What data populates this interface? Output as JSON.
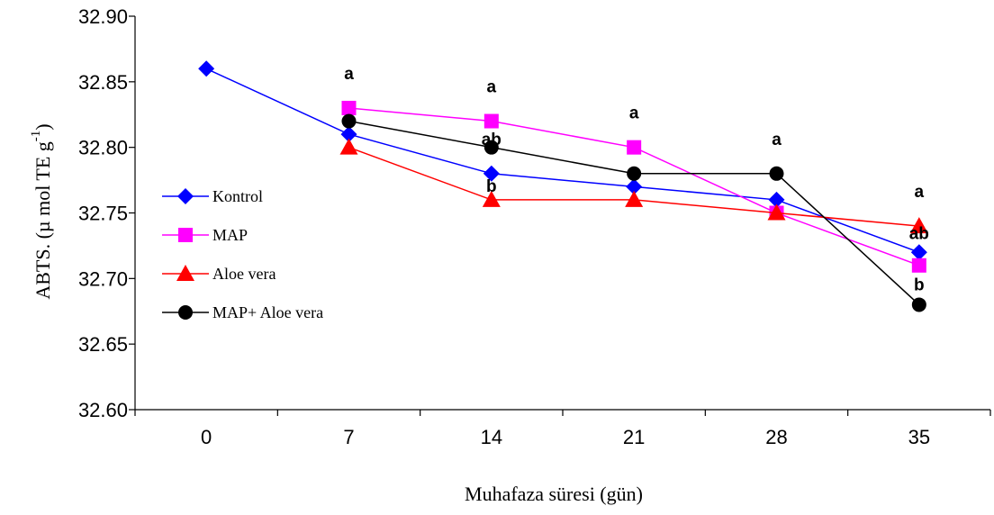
{
  "chart_data": {
    "type": "line",
    "x": [
      0,
      7,
      14,
      21,
      28,
      35
    ],
    "xlabel": "Muhafaza süresi (gün)",
    "ylabel_prefix": "ABTS. (µ mol  TE  g",
    "ylabel_sup": "-1",
    "ylabel_suffix": ")",
    "ylim": [
      32.6,
      32.9
    ],
    "yticks": [
      "32.60",
      "32.65",
      "32.70",
      "32.75",
      "32.80",
      "32.85",
      "32.90"
    ],
    "grid": false,
    "legend_position": "left",
    "series": [
      {
        "name": "Kontrol",
        "color": "#0000ff",
        "marker": "diamond",
        "values": [
          32.86,
          32.81,
          32.78,
          32.77,
          32.76,
          32.72
        ]
      },
      {
        "name": "MAP",
        "color": "#ff00ff",
        "marker": "square",
        "values": [
          null,
          32.83,
          32.82,
          32.8,
          32.75,
          32.71
        ]
      },
      {
        "name": "Aloe vera",
        "color": "#ff0000",
        "marker": "triangle",
        "values": [
          null,
          32.8,
          32.76,
          32.76,
          32.75,
          32.74
        ]
      },
      {
        "name": "MAP+ Aloe vera",
        "color": "#000000",
        "marker": "circle",
        "values": [
          null,
          32.82,
          32.8,
          32.78,
          32.78,
          32.68
        ]
      }
    ],
    "annotations": [
      {
        "text": "a",
        "x": 7,
        "y": 32.852
      },
      {
        "text": "a",
        "x": 14,
        "y": 32.842
      },
      {
        "text": "ab",
        "x": 14,
        "y": 32.802
      },
      {
        "text": "b",
        "x": 14,
        "y": 32.766
      },
      {
        "text": "a",
        "x": 21,
        "y": 32.822
      },
      {
        "text": "a",
        "x": 28,
        "y": 32.802
      },
      {
        "text": "a",
        "x": 35,
        "y": 32.762
      },
      {
        "text": "ab",
        "x": 35,
        "y": 32.73
      },
      {
        "text": "b",
        "x": 35,
        "y": 32.691
      }
    ]
  }
}
